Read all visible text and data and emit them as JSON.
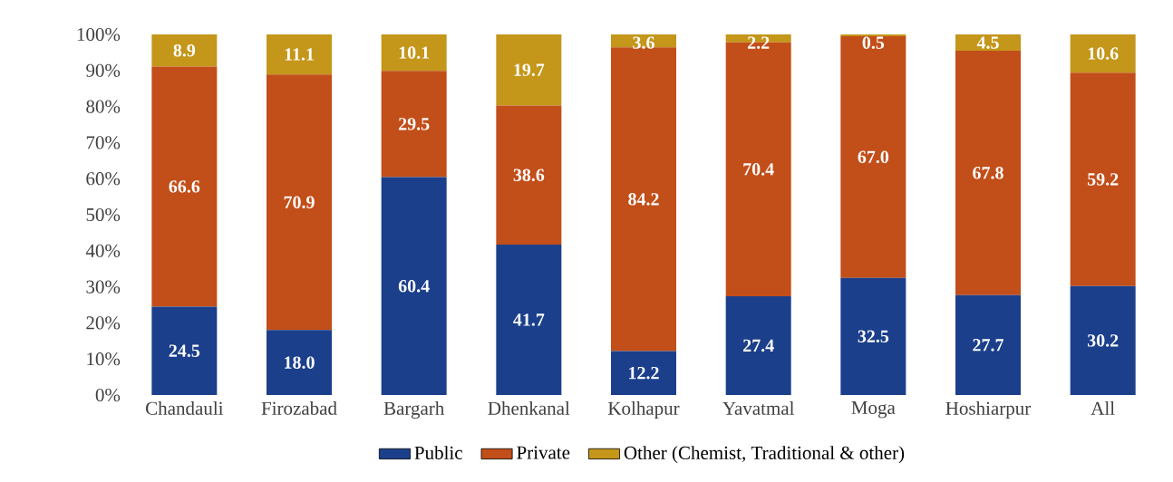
{
  "chart_data": {
    "type": "bar",
    "stacked": true,
    "categories": [
      "Chandauli",
      "Firozabad",
      "Bargarh",
      "Dhenkanal",
      "Kolhapur",
      "Yavatmal",
      "Moga",
      "Hoshiarpur",
      "All"
    ],
    "series": [
      {
        "name": "Public",
        "color": "#1b3f8b",
        "values": [
          24.5,
          18.0,
          60.4,
          41.7,
          12.2,
          27.4,
          32.5,
          27.7,
          30.2
        ],
        "value_labels": [
          "24.5",
          "18.0",
          "60.4",
          "41.7",
          "12.2",
          "27.4",
          "32.5",
          "27.7",
          "30.2"
        ]
      },
      {
        "name": "Private",
        "color": "#c24e19",
        "values": [
          66.6,
          70.9,
          29.5,
          38.6,
          84.2,
          70.4,
          67.0,
          67.8,
          59.2
        ],
        "value_labels": [
          "66.6",
          "70.9",
          "29.5",
          "38.6",
          "84.2",
          "70.4",
          "67.0",
          "67.8",
          "59.2"
        ]
      },
      {
        "name": "Other (Chemist, Traditional & other)",
        "color": "#c4961a",
        "values": [
          8.9,
          11.1,
          10.1,
          19.7,
          3.6,
          2.2,
          0.5,
          4.5,
          10.6
        ],
        "value_labels": [
          "8.9",
          "11.1",
          "10.1",
          "19.7",
          "3.6",
          "2.2",
          "0.5",
          "4.5",
          "10.6"
        ]
      }
    ],
    "ylim": [
      0,
      100
    ],
    "yticks": [
      {
        "value": 0,
        "label": "0%"
      },
      {
        "value": 10,
        "label": "10%"
      },
      {
        "value": 20,
        "label": "20%"
      },
      {
        "value": 30,
        "label": "30%"
      },
      {
        "value": 40,
        "label": "40%"
      },
      {
        "value": 50,
        "label": "50%"
      },
      {
        "value": 60,
        "label": "60%"
      },
      {
        "value": 70,
        "label": "70%"
      },
      {
        "value": 80,
        "label": "80%"
      },
      {
        "value": 90,
        "label": "90%"
      },
      {
        "value": 100,
        "label": "100%"
      }
    ],
    "grid": false,
    "legend": "bottom"
  }
}
